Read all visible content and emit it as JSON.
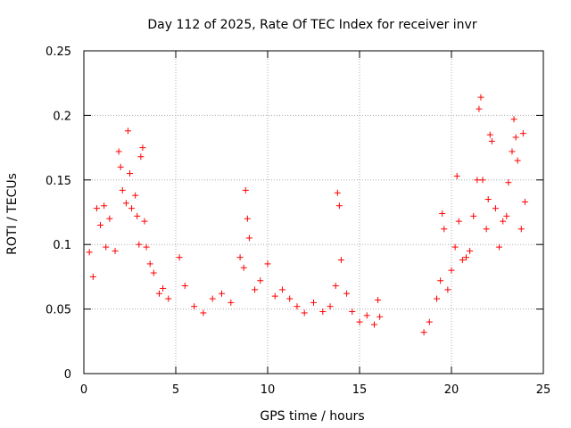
{
  "chart_data": {
    "type": "scatter",
    "title": "Day 112 of 2025, Rate Of TEC Index for receiver invr",
    "xlabel": "GPS time / hours",
    "ylabel": "ROTI / TECUs",
    "xlim": [
      0,
      25
    ],
    "ylim": [
      0,
      0.25
    ],
    "xticks": [
      0,
      5,
      10,
      15,
      20,
      25
    ],
    "xtick_labels": [
      "0",
      "5",
      "10",
      "15",
      "20",
      "25"
    ],
    "yticks": [
      0,
      0.05,
      0.1,
      0.15,
      0.2,
      0.25
    ],
    "ytick_labels": [
      "0",
      "0.05",
      "0.1",
      "0.15",
      "0.2",
      "0.25"
    ],
    "grid": true,
    "marker": "+",
    "marker_color": "#ff0000",
    "data_gap_hours": [
      16.3,
      18.2
    ],
    "series": [
      {
        "name": "ROTI",
        "points": [
          [
            0.3,
            0.094
          ],
          [
            0.5,
            0.075
          ],
          [
            0.7,
            0.128
          ],
          [
            0.9,
            0.115
          ],
          [
            1.1,
            0.13
          ],
          [
            1.2,
            0.098
          ],
          [
            1.4,
            0.12
          ],
          [
            1.7,
            0.095
          ],
          [
            1.9,
            0.172
          ],
          [
            2.0,
            0.16
          ],
          [
            2.1,
            0.142
          ],
          [
            2.3,
            0.132
          ],
          [
            2.4,
            0.188
          ],
          [
            2.5,
            0.155
          ],
          [
            2.6,
            0.128
          ],
          [
            2.8,
            0.138
          ],
          [
            2.9,
            0.122
          ],
          [
            3.0,
            0.1
          ],
          [
            3.1,
            0.168
          ],
          [
            3.2,
            0.175
          ],
          [
            3.3,
            0.118
          ],
          [
            3.4,
            0.098
          ],
          [
            3.6,
            0.085
          ],
          [
            3.8,
            0.078
          ],
          [
            4.1,
            0.062
          ],
          [
            4.3,
            0.066
          ],
          [
            4.6,
            0.058
          ],
          [
            5.2,
            0.09
          ],
          [
            5.5,
            0.068
          ],
          [
            6.0,
            0.052
          ],
          [
            6.5,
            0.047
          ],
          [
            7.0,
            0.058
          ],
          [
            7.5,
            0.062
          ],
          [
            8.0,
            0.055
          ],
          [
            8.5,
            0.09
          ],
          [
            8.7,
            0.082
          ],
          [
            8.8,
            0.142
          ],
          [
            8.9,
            0.12
          ],
          [
            9.0,
            0.105
          ],
          [
            9.3,
            0.065
          ],
          [
            9.6,
            0.072
          ],
          [
            10.0,
            0.085
          ],
          [
            10.4,
            0.06
          ],
          [
            10.8,
            0.065
          ],
          [
            11.2,
            0.058
          ],
          [
            11.6,
            0.052
          ],
          [
            12.0,
            0.047
          ],
          [
            12.5,
            0.055
          ],
          [
            13.0,
            0.048
          ],
          [
            13.4,
            0.052
          ],
          [
            13.7,
            0.068
          ],
          [
            13.8,
            0.14
          ],
          [
            13.9,
            0.13
          ],
          [
            14.0,
            0.088
          ],
          [
            14.3,
            0.062
          ],
          [
            14.6,
            0.048
          ],
          [
            15.0,
            0.04
          ],
          [
            15.4,
            0.045
          ],
          [
            15.8,
            0.038
          ],
          [
            16.0,
            0.057
          ],
          [
            16.1,
            0.044
          ],
          [
            18.5,
            0.032
          ],
          [
            18.8,
            0.04
          ],
          [
            19.2,
            0.058
          ],
          [
            19.4,
            0.072
          ],
          [
            19.5,
            0.124
          ],
          [
            19.6,
            0.112
          ],
          [
            19.8,
            0.065
          ],
          [
            20.0,
            0.08
          ],
          [
            20.2,
            0.098
          ],
          [
            20.3,
            0.153
          ],
          [
            20.4,
            0.118
          ],
          [
            20.6,
            0.088
          ],
          [
            20.8,
            0.09
          ],
          [
            21.0,
            0.095
          ],
          [
            21.2,
            0.122
          ],
          [
            21.4,
            0.15
          ],
          [
            21.5,
            0.205
          ],
          [
            21.6,
            0.214
          ],
          [
            21.7,
            0.15
          ],
          [
            21.9,
            0.112
          ],
          [
            22.0,
            0.135
          ],
          [
            22.1,
            0.185
          ],
          [
            22.2,
            0.18
          ],
          [
            22.4,
            0.128
          ],
          [
            22.6,
            0.098
          ],
          [
            22.8,
            0.118
          ],
          [
            23.0,
            0.122
          ],
          [
            23.1,
            0.148
          ],
          [
            23.3,
            0.172
          ],
          [
            23.4,
            0.197
          ],
          [
            23.5,
            0.183
          ],
          [
            23.6,
            0.165
          ],
          [
            23.8,
            0.112
          ],
          [
            23.9,
            0.186
          ],
          [
            24.0,
            0.133
          ]
        ]
      }
    ]
  }
}
